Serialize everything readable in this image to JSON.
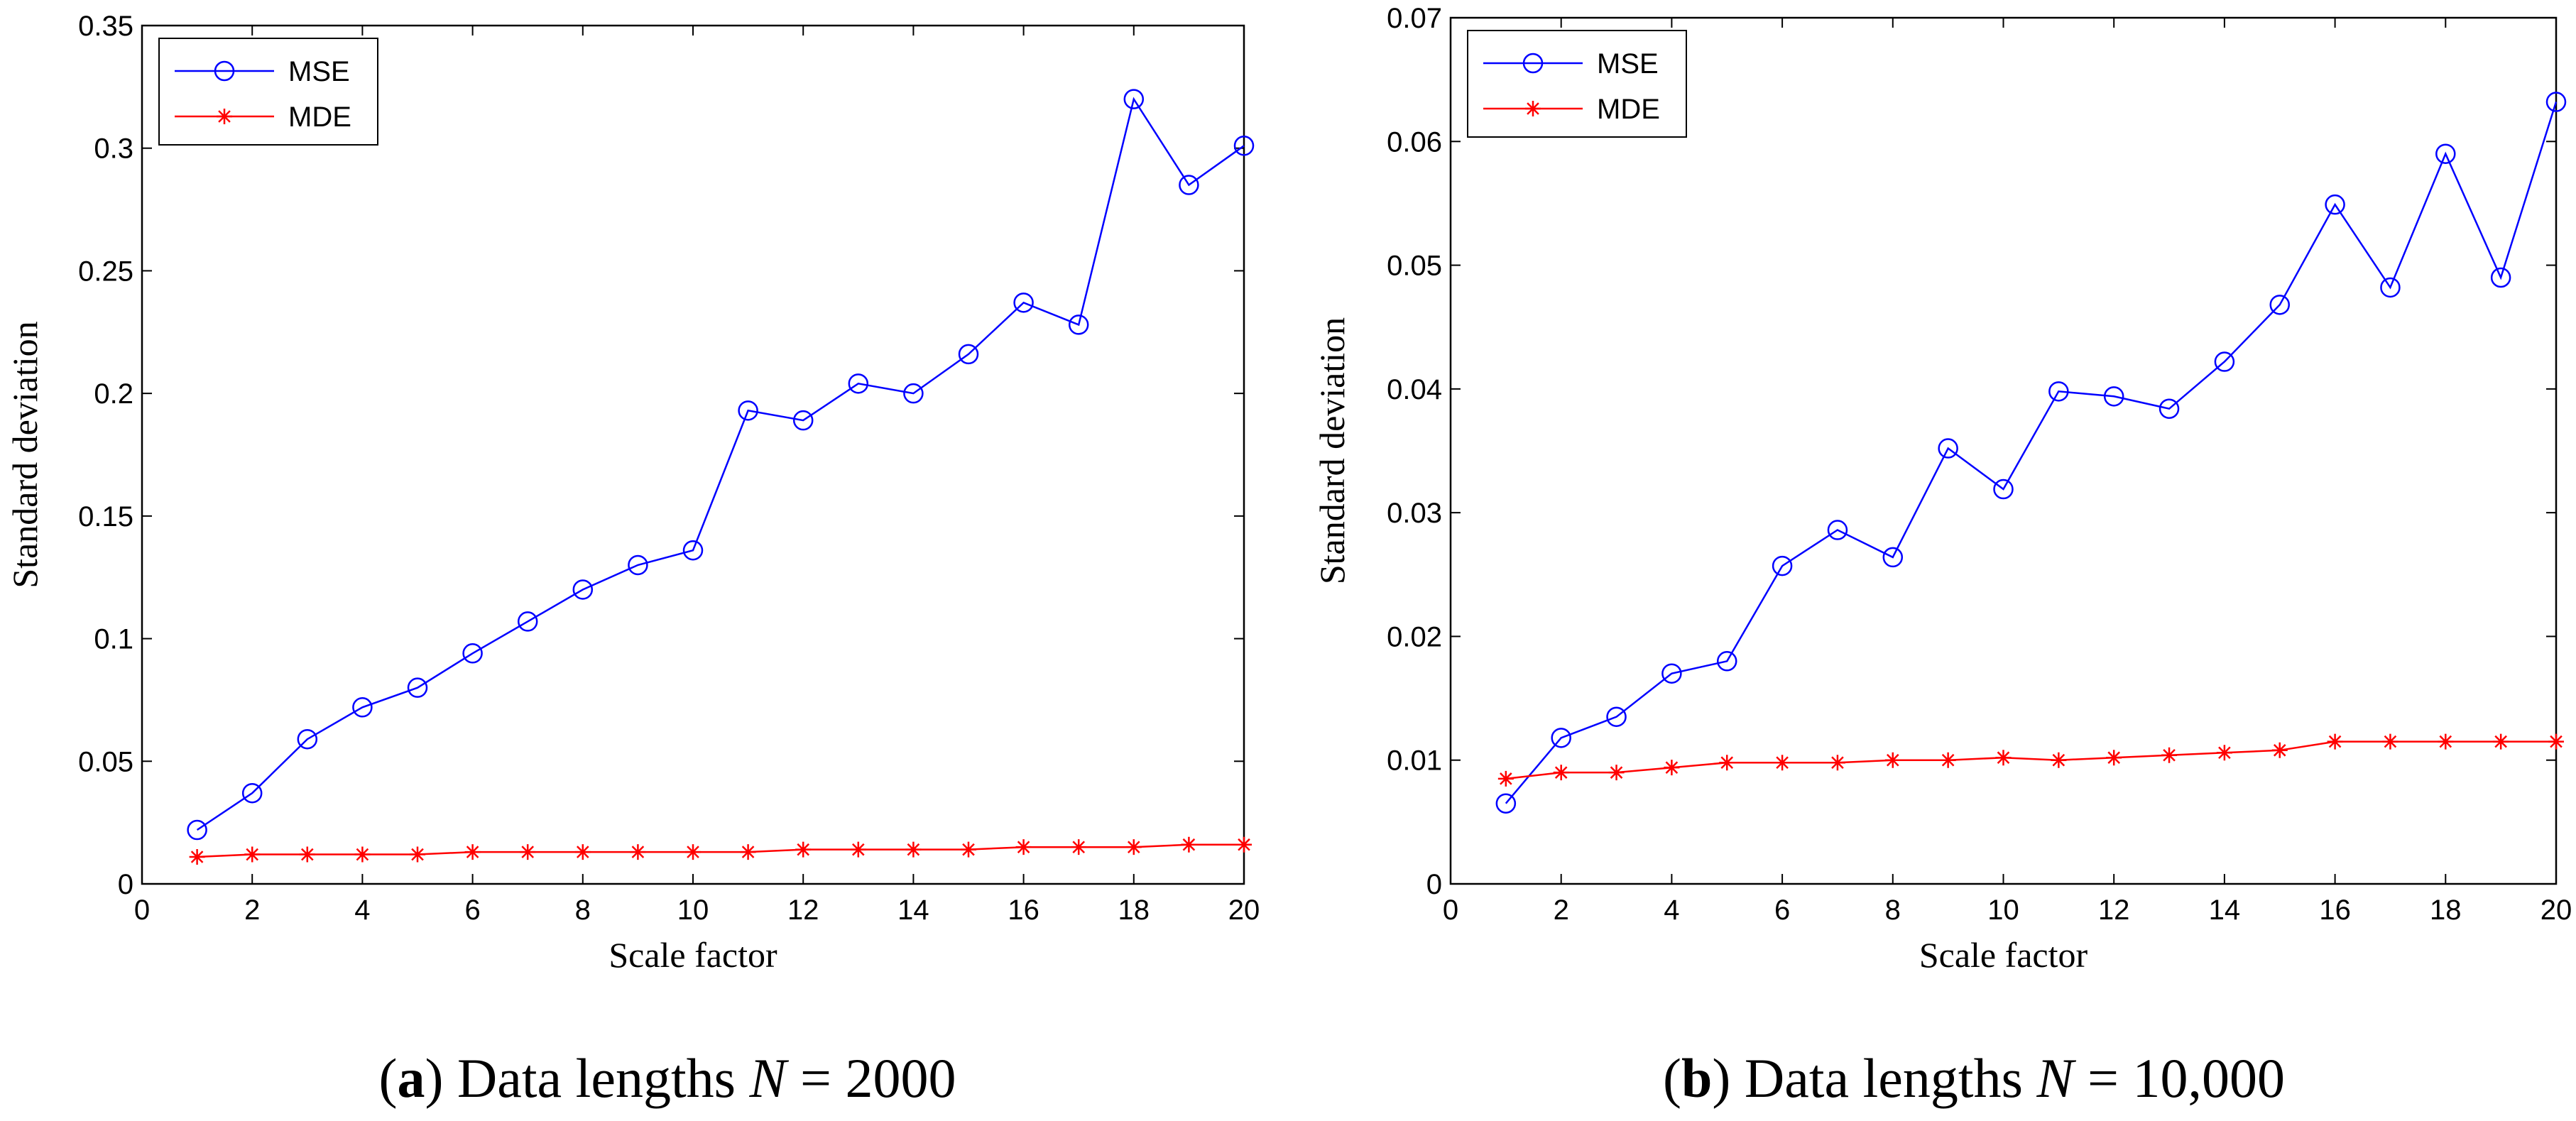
{
  "chart_data": [
    {
      "type": "line",
      "panel_letter": "a",
      "caption": {
        "open": "(",
        "letter": "a",
        "close_and_text": ") Data lengths ",
        "var": "N",
        "equals_value": " = 2000"
      },
      "xlabel": "Scale factor",
      "ylabel": "Standard deviation",
      "xlim": [
        0,
        20
      ],
      "ylim": [
        0,
        0.35
      ],
      "x_ticks": [
        0,
        2,
        4,
        6,
        8,
        10,
        12,
        14,
        16,
        18,
        20
      ],
      "x_tick_labels": [
        "0",
        "2",
        "4",
        "6",
        "8",
        "10",
        "12",
        "14",
        "16",
        "18",
        "20"
      ],
      "y_ticks": [
        0,
        0.05,
        0.1,
        0.15,
        0.2,
        0.25,
        0.3,
        0.35
      ],
      "y_tick_labels": [
        "0",
        "0.05",
        "0.1",
        "0.15",
        "0.2",
        "0.25",
        "0.3",
        "0.35"
      ],
      "legend_position": "top-left",
      "x": [
        1,
        2,
        3,
        4,
        5,
        6,
        7,
        8,
        9,
        10,
        11,
        12,
        13,
        14,
        15,
        16,
        17,
        18,
        19,
        20
      ],
      "series": [
        {
          "name": "MSE",
          "color": "#0000ff",
          "marker": "circle",
          "values": [
            0.022,
            0.037,
            0.059,
            0.072,
            0.08,
            0.094,
            0.107,
            0.12,
            0.13,
            0.136,
            0.193,
            0.189,
            0.204,
            0.2,
            0.216,
            0.237,
            0.228,
            0.32,
            0.285,
            0.301
          ]
        },
        {
          "name": "MDE",
          "color": "#ff0000",
          "marker": "star",
          "values": [
            0.011,
            0.012,
            0.012,
            0.012,
            0.012,
            0.013,
            0.013,
            0.013,
            0.013,
            0.013,
            0.013,
            0.014,
            0.014,
            0.014,
            0.014,
            0.015,
            0.015,
            0.015,
            0.016,
            0.016
          ]
        }
      ]
    },
    {
      "type": "line",
      "panel_letter": "b",
      "caption": {
        "open": "(",
        "letter": "b",
        "close_and_text": ") Data lengths ",
        "var": "N",
        "equals_value": " = 10,000"
      },
      "xlabel": "Scale factor",
      "ylabel": "Standard deviation",
      "xlim": [
        0,
        20
      ],
      "ylim": [
        0,
        0.07
      ],
      "x_ticks": [
        0,
        2,
        4,
        6,
        8,
        10,
        12,
        14,
        16,
        18,
        20
      ],
      "x_tick_labels": [
        "0",
        "2",
        "4",
        "6",
        "8",
        "10",
        "12",
        "14",
        "16",
        "18",
        "20"
      ],
      "y_ticks": [
        0,
        0.01,
        0.02,
        0.03,
        0.04,
        0.05,
        0.06,
        0.07
      ],
      "y_tick_labels": [
        "0",
        "0.01",
        "0.02",
        "0.03",
        "0.04",
        "0.05",
        "0.06",
        "0.07"
      ],
      "legend_position": "top-left",
      "x": [
        1,
        2,
        3,
        4,
        5,
        6,
        7,
        8,
        9,
        10,
        11,
        12,
        13,
        14,
        15,
        16,
        17,
        18,
        19,
        20
      ],
      "series": [
        {
          "name": "MSE",
          "color": "#0000ff",
          "marker": "circle",
          "values": [
            0.0065,
            0.0118,
            0.0135,
            0.017,
            0.018,
            0.0257,
            0.0286,
            0.0264,
            0.0352,
            0.0319,
            0.0398,
            0.0394,
            0.0384,
            0.0422,
            0.0468,
            0.0549,
            0.0482,
            0.059,
            0.049,
            0.0632
          ]
        },
        {
          "name": "MDE",
          "color": "#ff0000",
          "marker": "star",
          "values": [
            0.0085,
            0.009,
            0.009,
            0.0094,
            0.0098,
            0.0098,
            0.0098,
            0.01,
            0.01,
            0.0102,
            0.01,
            0.0102,
            0.0104,
            0.0106,
            0.0108,
            0.0115,
            0.0115,
            0.0115,
            0.0115,
            0.0115
          ]
        }
      ]
    }
  ]
}
